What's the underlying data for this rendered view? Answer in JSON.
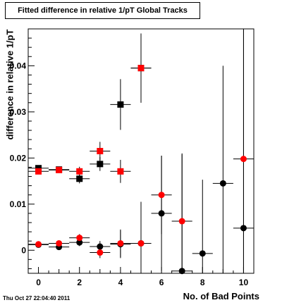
{
  "chart_data": {
    "type": "scatter",
    "title": "Fitted difference in relative 1/pT  Global Tracks",
    "xlabel": "No. of Bad Points",
    "ylabel": "difference in relative 1/pT",
    "xlim": [
      -0.5,
      10.5
    ],
    "ylim": [
      -0.005,
      0.048
    ],
    "x_ticks": [
      0,
      2,
      4,
      6,
      8,
      10
    ],
    "y_ticks": [
      0,
      0.01,
      0.02,
      0.03,
      0.04
    ],
    "y_tick_labels": [
      "0",
      "0.01",
      "0.02",
      "0.03",
      "0.04"
    ],
    "grid": false,
    "series": [
      {
        "marker": "square",
        "color": "#000000",
        "points": [
          {
            "x": 0,
            "y": 0.0178,
            "ey": 0.0006
          },
          {
            "x": 1,
            "y": 0.0175,
            "ey": 0.0006
          },
          {
            "x": 2,
            "y": 0.0155,
            "ey": 0.001
          },
          {
            "x": 3,
            "y": 0.0187,
            "ey": 0.0015
          },
          {
            "x": 4,
            "y": 0.0316,
            "ey": 0.0055
          },
          {
            "x": 5,
            "y": 0.0395,
            "ey": 0.0075
          }
        ]
      },
      {
        "marker": "square",
        "color": "#ff0000",
        "points": [
          {
            "x": 0,
            "y": 0.0171,
            "ey": 0.0006
          },
          {
            "x": 1,
            "y": 0.0174,
            "ey": 0.0006
          },
          {
            "x": 2,
            "y": 0.0171,
            "ey": 0.001
          },
          {
            "x": 3,
            "y": 0.0215,
            "ey": 0.002
          },
          {
            "x": 4,
            "y": 0.0171,
            "ey": 0.0025
          },
          {
            "x": 5,
            "y": 0.0395,
            "ey": 0.0075
          }
        ]
      },
      {
        "marker": "circle",
        "color": "#000000",
        "points": [
          {
            "x": 0,
            "y": 0.0012,
            "ey": 0.0004
          },
          {
            "x": 1,
            "y": 0.0007,
            "ey": 0.0005
          },
          {
            "x": 2,
            "y": 0.0017,
            "ey": 0.0008
          },
          {
            "x": 3,
            "y": 0.0008,
            "ey": 0.0012
          },
          {
            "x": 4,
            "y": 0.0013,
            "ey": 0.003
          },
          {
            "x": 5,
            "y": 0.0015,
            "ey": 0.009
          },
          {
            "x": 6,
            "y": 0.008,
            "ey": 0.0125
          },
          {
            "x": 7,
            "y": -0.0045,
            "ey": 0.0255
          },
          {
            "x": 8,
            "y": -0.0007,
            "ey": 0.016
          },
          {
            "x": 9,
            "y": 0.0145,
            "ey": 0.0255
          },
          {
            "x": 10,
            "y": 0.0048,
            "ey": 0.045
          }
        ]
      },
      {
        "marker": "circle",
        "color": "#ff0000",
        "points": [
          {
            "x": 0,
            "y": 0.0013,
            "ey": 0.0004
          },
          {
            "x": 1,
            "y": 0.0015,
            "ey": 0.0005
          },
          {
            "x": 2,
            "y": 0.0027,
            "ey": 0.0008
          },
          {
            "x": 3,
            "y": -0.0005,
            "ey": 0.0012
          },
          {
            "x": 4,
            "y": 0.0015,
            "ey": 0.003
          },
          {
            "x": 5,
            "y": 0.0015,
            "ey": 0.009
          },
          {
            "x": 6,
            "y": 0.012,
            "ey": 0.0085
          },
          {
            "x": 7,
            "y": 0.0063,
            "ey": 0.0145
          },
          {
            "x": 10,
            "y": 0.0198,
            "ey": 0.034
          }
        ]
      }
    ]
  },
  "timestamp": "Thu Oct 27 22:04:40 2011"
}
